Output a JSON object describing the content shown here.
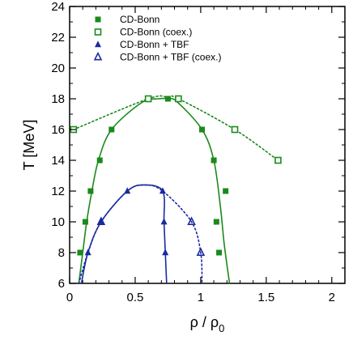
{
  "chart_data": {
    "type": "scatter",
    "xlabel": "ρ / ρ",
    "xlabel_sub": "0",
    "ylabel": "T [MeV]",
    "xlim": [
      0,
      2.1
    ],
    "ylim": [
      6,
      24
    ],
    "xticks": [
      0,
      0.5,
      1,
      1.5,
      2
    ],
    "xtick_labels": [
      "0",
      "0.5",
      "1",
      "1.5",
      "2"
    ],
    "yticks": [
      6,
      8,
      10,
      12,
      14,
      16,
      18,
      20,
      22,
      24
    ],
    "ytick_labels": [
      "6",
      "8",
      "10",
      "12",
      "14",
      "16",
      "18",
      "20",
      "22",
      "24"
    ],
    "grid": false,
    "legend_position": "top-left",
    "series": [
      {
        "name": "CD-Bonn",
        "marker": "filled-square",
        "color": "#1a8a1a",
        "points": [
          [
            0.08,
            8
          ],
          [
            0.12,
            10
          ],
          [
            0.16,
            12
          ],
          [
            0.23,
            14
          ],
          [
            0.32,
            16
          ],
          [
            0.75,
            18
          ],
          [
            1.01,
            16
          ],
          [
            1.1,
            14
          ],
          [
            1.12,
            10
          ],
          [
            1.14,
            8
          ],
          [
            1.19,
            12
          ]
        ]
      },
      {
        "name": "CD-Bonn (coex.)",
        "marker": "open-square",
        "color": "#1a8a1a",
        "points": [
          [
            0.03,
            16
          ],
          [
            0.6,
            18
          ],
          [
            0.83,
            18
          ],
          [
            1.26,
            16
          ],
          [
            1.59,
            14
          ]
        ]
      },
      {
        "name": "CD-Bonn + TBF",
        "marker": "filled-triangle",
        "color": "#1a2aa0",
        "points": [
          [
            0.14,
            8
          ],
          [
            0.24,
            10
          ],
          [
            0.44,
            12
          ],
          [
            0.71,
            12
          ],
          [
            0.72,
            10
          ],
          [
            0.73,
            8
          ]
        ]
      },
      {
        "name": "CD-Bonn + TBF (coex.)",
        "marker": "open-triangle",
        "color": "#1a2aa0",
        "points": [
          [
            0.24,
            10
          ],
          [
            0.93,
            10
          ],
          [
            1.0,
            8
          ]
        ]
      }
    ],
    "curves": [
      {
        "series": "CD-Bonn",
        "style": "solid",
        "color": "#1a8a1a",
        "points": [
          [
            0.07,
            6
          ],
          [
            0.1,
            8
          ],
          [
            0.13,
            10
          ],
          [
            0.17,
            12
          ],
          [
            0.22,
            14
          ],
          [
            0.32,
            16
          ],
          [
            0.55,
            17.75
          ],
          [
            0.68,
            18
          ],
          [
            0.75,
            18
          ],
          [
            0.82,
            17.8
          ],
          [
            1.01,
            16
          ],
          [
            1.1,
            14
          ],
          [
            1.15,
            11
          ],
          [
            1.18,
            8.5
          ],
          [
            1.22,
            6
          ]
        ]
      },
      {
        "series": "CD-Bonn (coex.)",
        "style": "dotted",
        "color": "#1a8a1a",
        "points": [
          [
            0.03,
            16
          ],
          [
            0.6,
            18
          ],
          [
            0.75,
            18.1
          ],
          [
            0.83,
            18
          ],
          [
            1.26,
            16
          ],
          [
            1.59,
            14
          ]
        ]
      },
      {
        "series": "CD-Bonn + TBF",
        "style": "solid",
        "color": "#1a2aa0",
        "points": [
          [
            0.09,
            6
          ],
          [
            0.14,
            8
          ],
          [
            0.24,
            10
          ],
          [
            0.44,
            12
          ],
          [
            0.57,
            12.4
          ],
          [
            0.71,
            12
          ],
          [
            0.72,
            10
          ],
          [
            0.73,
            8
          ],
          [
            0.74,
            6
          ]
        ]
      },
      {
        "series": "CD-Bonn + TBF (coex.)",
        "style": "dotted",
        "color": "#1a2aa0",
        "points": [
          [
            0.07,
            6
          ],
          [
            0.14,
            8
          ],
          [
            0.24,
            10
          ],
          [
            0.44,
            12
          ],
          [
            0.57,
            12.4
          ],
          [
            0.71,
            12
          ],
          [
            0.93,
            10
          ],
          [
            1.0,
            8
          ],
          [
            1.01,
            6
          ]
        ]
      }
    ]
  }
}
